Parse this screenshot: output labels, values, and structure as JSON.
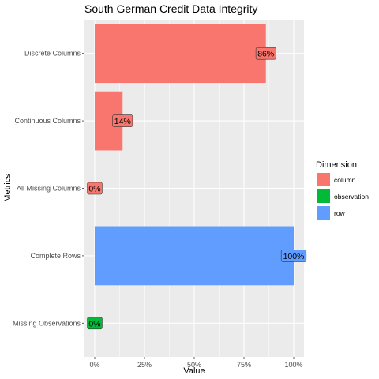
{
  "chart_data": {
    "type": "bar",
    "orientation": "horizontal",
    "title": "South German Credit Data Integrity",
    "xlabel": "Value",
    "ylabel": "Metrics",
    "xlim": [
      0,
      1
    ],
    "x_ticks": [
      "0%",
      "25%",
      "50%",
      "75%",
      "100%"
    ],
    "x_tick_values": [
      0,
      0.25,
      0.5,
      0.75,
      1
    ],
    "categories": [
      "Discrete Columns",
      "Continuous Columns",
      "All Missing Columns",
      "Complete Rows",
      "Missing Observations"
    ],
    "values": [
      0.86,
      0.14,
      0,
      1,
      0
    ],
    "labels": [
      "86%",
      "14%",
      "0%",
      "100%",
      "0%"
    ],
    "dimension": [
      "column",
      "column",
      "column",
      "row",
      "observation"
    ],
    "grid": true,
    "legend": {
      "title": "Dimension",
      "placement": "right",
      "entries": [
        {
          "name": "column",
          "color": "#F8766D"
        },
        {
          "name": "observation",
          "color": "#00BA38"
        },
        {
          "name": "row",
          "color": "#619CFF"
        }
      ]
    },
    "colors": {
      "column": "#F8766D",
      "observation": "#00BA38",
      "row": "#619CFF"
    },
    "panel_background": "#EBEBEB"
  }
}
